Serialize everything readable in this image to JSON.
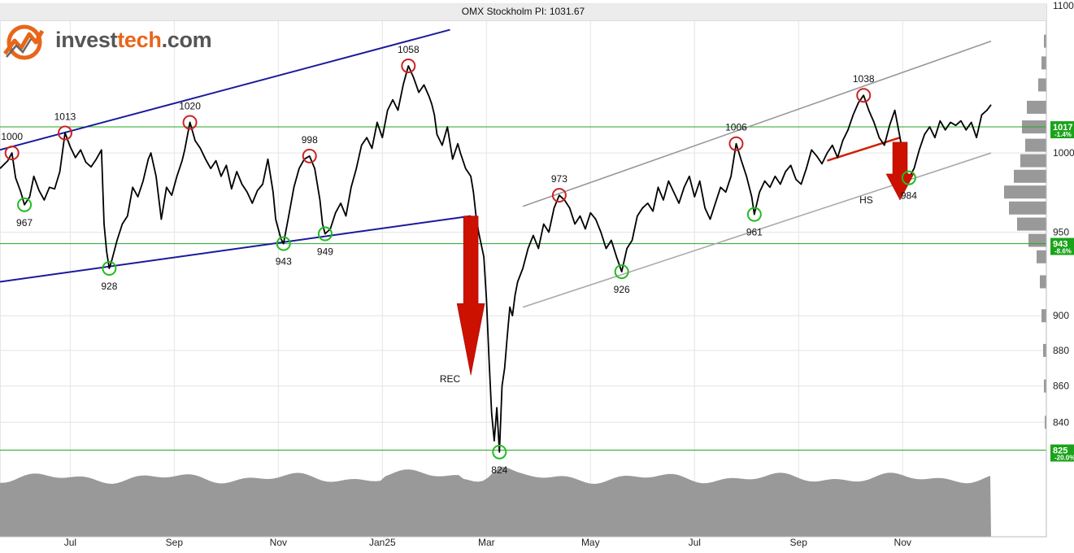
{
  "chart_data": {
    "type": "line",
    "title": "OMX Stockholm PI: 1031.67",
    "y_scale": "log",
    "ylim": [
      800,
      1100
    ],
    "y_ticks": [
      840,
      860,
      880,
      900,
      950,
      1000,
      1100
    ],
    "x_ticks": [
      "Jul",
      "Sep",
      "Nov",
      "Jan25",
      "Mar",
      "May",
      "Jul",
      "Sep",
      "Nov"
    ],
    "x_tick_months": [
      1,
      3,
      5,
      7,
      9,
      11,
      13,
      15,
      17
    ],
    "start_month": -0.35,
    "end_month": 18.7,
    "series": [
      {
        "points": [
          [
            -0.35,
            990
          ],
          [
            -0.2,
            995
          ],
          [
            -0.12,
            1000
          ],
          [
            -0.05,
            984
          ],
          [
            0.05,
            975
          ],
          [
            0.12,
            967
          ],
          [
            0.22,
            972
          ],
          [
            0.3,
            985
          ],
          [
            0.4,
            976
          ],
          [
            0.5,
            970
          ],
          [
            0.6,
            978
          ],
          [
            0.7,
            977
          ],
          [
            0.8,
            988
          ],
          [
            0.9,
            1013
          ],
          [
            1.0,
            1004
          ],
          [
            1.1,
            997
          ],
          [
            1.2,
            1002
          ],
          [
            1.3,
            994
          ],
          [
            1.4,
            991
          ],
          [
            1.5,
            996
          ],
          [
            1.6,
            1002
          ],
          [
            1.65,
            955
          ],
          [
            1.7,
            938
          ],
          [
            1.75,
            928
          ],
          [
            1.8,
            933
          ],
          [
            1.9,
            945
          ],
          [
            2.0,
            955
          ],
          [
            2.1,
            960
          ],
          [
            2.2,
            978
          ],
          [
            2.3,
            972
          ],
          [
            2.4,
            982
          ],
          [
            2.5,
            996
          ],
          [
            2.55,
            1000
          ],
          [
            2.65,
            985
          ],
          [
            2.75,
            958
          ],
          [
            2.85,
            978
          ],
          [
            2.95,
            973
          ],
          [
            3.05,
            985
          ],
          [
            3.15,
            995
          ],
          [
            3.2,
            1002
          ],
          [
            3.3,
            1020
          ],
          [
            3.4,
            1008
          ],
          [
            3.5,
            1003
          ],
          [
            3.6,
            996
          ],
          [
            3.7,
            990
          ],
          [
            3.8,
            995
          ],
          [
            3.9,
            985
          ],
          [
            4.0,
            992
          ],
          [
            4.1,
            977
          ],
          [
            4.2,
            988
          ],
          [
            4.3,
            980
          ],
          [
            4.4,
            975
          ],
          [
            4.5,
            968
          ],
          [
            4.6,
            976
          ],
          [
            4.7,
            980
          ],
          [
            4.8,
            996
          ],
          [
            4.9,
            975
          ],
          [
            4.95,
            958
          ],
          [
            5.05,
            946
          ],
          [
            5.1,
            943
          ],
          [
            5.2,
            960
          ],
          [
            5.3,
            978
          ],
          [
            5.4,
            990
          ],
          [
            5.5,
            996
          ],
          [
            5.6,
            998
          ],
          [
            5.7,
            990
          ],
          [
            5.8,
            970
          ],
          [
            5.85,
            955
          ],
          [
            5.9,
            949
          ],
          [
            6.0,
            952
          ],
          [
            6.1,
            962
          ],
          [
            6.2,
            968
          ],
          [
            6.3,
            960
          ],
          [
            6.4,
            978
          ],
          [
            6.5,
            990
          ],
          [
            6.6,
            1005
          ],
          [
            6.7,
            1010
          ],
          [
            6.8,
            1003
          ],
          [
            6.9,
            1020
          ],
          [
            7.0,
            1010
          ],
          [
            7.1,
            1028
          ],
          [
            7.2,
            1035
          ],
          [
            7.3,
            1028
          ],
          [
            7.4,
            1045
          ],
          [
            7.5,
            1058
          ],
          [
            7.6,
            1050
          ],
          [
            7.7,
            1040
          ],
          [
            7.8,
            1045
          ],
          [
            7.9,
            1037
          ],
          [
            7.95,
            1032
          ],
          [
            8.0,
            1025
          ],
          [
            8.05,
            1012
          ],
          [
            8.15,
            1005
          ],
          [
            8.25,
            1017
          ],
          [
            8.35,
            996
          ],
          [
            8.45,
            1006
          ],
          [
            8.5,
            1000
          ],
          [
            8.6,
            990
          ],
          [
            8.7,
            985
          ],
          [
            8.75,
            975
          ],
          [
            8.8,
            960
          ],
          [
            8.85,
            950
          ],
          [
            8.95,
            935
          ],
          [
            9.0,
            910
          ],
          [
            9.05,
            875
          ],
          [
            9.1,
            845
          ],
          [
            9.15,
            830
          ],
          [
            9.2,
            848
          ],
          [
            9.25,
            824
          ],
          [
            9.3,
            860
          ],
          [
            9.35,
            870
          ],
          [
            9.4,
            888
          ],
          [
            9.45,
            905
          ],
          [
            9.5,
            900
          ],
          [
            9.55,
            912
          ],
          [
            9.6,
            920
          ],
          [
            9.7,
            928
          ],
          [
            9.8,
            940
          ],
          [
            9.9,
            948
          ],
          [
            10.0,
            940
          ],
          [
            10.1,
            955
          ],
          [
            10.2,
            950
          ],
          [
            10.3,
            965
          ],
          [
            10.4,
            973
          ],
          [
            10.5,
            970
          ],
          [
            10.6,
            965
          ],
          [
            10.7,
            955
          ],
          [
            10.8,
            960
          ],
          [
            10.9,
            952
          ],
          [
            11.0,
            962
          ],
          [
            11.1,
            958
          ],
          [
            11.2,
            950
          ],
          [
            11.3,
            940
          ],
          [
            11.4,
            945
          ],
          [
            11.5,
            935
          ],
          [
            11.6,
            926
          ],
          [
            11.7,
            940
          ],
          [
            11.8,
            945
          ],
          [
            11.9,
            960
          ],
          [
            12.0,
            965
          ],
          [
            12.1,
            968
          ],
          [
            12.2,
            963
          ],
          [
            12.3,
            978
          ],
          [
            12.4,
            970
          ],
          [
            12.5,
            982
          ],
          [
            12.6,
            975
          ],
          [
            12.7,
            968
          ],
          [
            12.8,
            978
          ],
          [
            12.9,
            985
          ],
          [
            13.0,
            972
          ],
          [
            13.1,
            982
          ],
          [
            13.2,
            965
          ],
          [
            13.3,
            958
          ],
          [
            13.4,
            968
          ],
          [
            13.5,
            978
          ],
          [
            13.6,
            975
          ],
          [
            13.7,
            985
          ],
          [
            13.8,
            1006
          ],
          [
            13.9,
            995
          ],
          [
            14.0,
            985
          ],
          [
            14.1,
            972
          ],
          [
            14.15,
            961
          ],
          [
            14.25,
            975
          ],
          [
            14.35,
            982
          ],
          [
            14.45,
            978
          ],
          [
            14.55,
            985
          ],
          [
            14.65,
            980
          ],
          [
            14.75,
            988
          ],
          [
            14.85,
            992
          ],
          [
            14.95,
            983
          ],
          [
            15.05,
            980
          ],
          [
            15.15,
            990
          ],
          [
            15.25,
            1002
          ],
          [
            15.35,
            998
          ],
          [
            15.45,
            993
          ],
          [
            15.55,
            1000
          ],
          [
            15.65,
            1005
          ],
          [
            15.75,
            997
          ],
          [
            15.85,
            1008
          ],
          [
            15.95,
            1015
          ],
          [
            16.05,
            1025
          ],
          [
            16.15,
            1033
          ],
          [
            16.25,
            1038
          ],
          [
            16.35,
            1028
          ],
          [
            16.45,
            1020
          ],
          [
            16.55,
            1010
          ],
          [
            16.65,
            1005
          ],
          [
            16.75,
            1018
          ],
          [
            16.85,
            1028
          ],
          [
            16.95,
            1010
          ],
          [
            17.05,
            990
          ],
          [
            17.12,
            984
          ],
          [
            17.22,
            990
          ],
          [
            17.32,
            1002
          ],
          [
            17.42,
            1012
          ],
          [
            17.52,
            1017
          ],
          [
            17.62,
            1010
          ],
          [
            17.72,
            1021
          ],
          [
            17.82,
            1015
          ],
          [
            17.92,
            1020
          ],
          [
            18.02,
            1018
          ],
          [
            18.12,
            1021
          ],
          [
            18.22,
            1015
          ],
          [
            18.32,
            1020
          ],
          [
            18.42,
            1010
          ],
          [
            18.52,
            1025
          ],
          [
            18.62,
            1028
          ],
          [
            18.7,
            1031.67
          ]
        ]
      }
    ],
    "annotations": {
      "tops": [
        {
          "month": -0.12,
          "value": 1000,
          "label": "1000"
        },
        {
          "month": 0.9,
          "value": 1013,
          "label": "1013"
        },
        {
          "month": 3.3,
          "value": 1020,
          "label": "1020"
        },
        {
          "month": 5.6,
          "value": 998,
          "label": "998"
        },
        {
          "month": 7.5,
          "value": 1058,
          "label": "1058"
        },
        {
          "month": 10.4,
          "value": 973,
          "label": "973"
        },
        {
          "month": 13.8,
          "value": 1006,
          "label": "1006"
        },
        {
          "month": 16.25,
          "value": 1038,
          "label": "1038"
        }
      ],
      "bottoms": [
        {
          "month": 0.12,
          "value": 967,
          "label": "967"
        },
        {
          "month": 1.75,
          "value": 928,
          "label": "928"
        },
        {
          "month": 5.1,
          "value": 943,
          "label": "943"
        },
        {
          "month": 5.9,
          "value": 949,
          "label": "949"
        },
        {
          "month": 9.25,
          "value": 824,
          "label": "824"
        },
        {
          "month": 11.6,
          "value": 926,
          "label": "926"
        },
        {
          "month": 14.15,
          "value": 961,
          "label": "961"
        },
        {
          "month": 17.12,
          "value": 984,
          "label": "984"
        }
      ],
      "pattern_labels": [
        {
          "text": "REC",
          "month": 8.3,
          "value": 862
        },
        {
          "text": "HS",
          "month": 16.3,
          "value": 968
        }
      ],
      "trend_channels": [
        {
          "color": "#1a1a9a",
          "from": [
            -0.35,
            1002
          ],
          "to": [
            8.3,
            1083
          ]
        },
        {
          "color": "#1a1a9a",
          "from": [
            -0.35,
            920
          ],
          "to": [
            8.7,
            960
          ]
        },
        {
          "color": "#999999",
          "from": [
            9.7,
            966
          ],
          "to": [
            18.7,
            1075
          ]
        },
        {
          "color": "#aaaaaa",
          "from": [
            9.7,
            905
          ],
          "to": [
            18.7,
            1000
          ]
        }
      ],
      "neckline": {
        "color": "#cc2200",
        "from": [
          15.55,
          995
        ],
        "to": [
          16.95,
          1010
        ]
      },
      "arrows": [
        {
          "month": 8.7,
          "from": 960,
          "to": 866
        },
        {
          "month": 16.95,
          "from": 1007,
          "to": 970
        }
      ]
    },
    "support_resistance": [
      {
        "value": 1017,
        "label": "1017",
        "pct": "-1.4%"
      },
      {
        "value": 943,
        "label": "943",
        "pct": "-8.6%"
      },
      {
        "value": 825,
        "label": "825",
        "pct": "-20.0%"
      }
    ],
    "colors": {
      "price": "#000000",
      "top_marker": "#cc2222",
      "bottom_marker": "#22bb22",
      "support_line": "#22aa22",
      "arrow": "#cc1100",
      "volume": "#999999",
      "grid": "#e4e4e4"
    }
  },
  "logo": {
    "text_plain": "invest",
    "text_accent": "tech",
    "text_suffix": ".com"
  }
}
